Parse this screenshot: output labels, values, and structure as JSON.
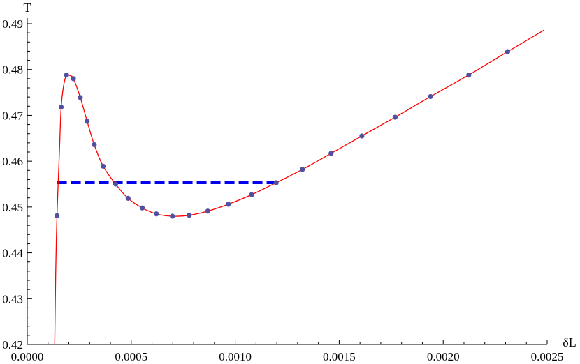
{
  "chart_data": {
    "type": "line",
    "xlabel": "δL",
    "ylabel": "T",
    "xlim": [
      0,
      0.0025
    ],
    "ylim": [
      0.42,
      0.49
    ],
    "x_ticks": [
      "0.0000",
      "0.0005",
      "0.0010",
      "0.0015",
      "0.0020",
      "0.0025"
    ],
    "x_tick_values": [
      0,
      0.0005,
      0.001,
      0.0015,
      0.002,
      0.0025
    ],
    "y_ticks": [
      "0.42",
      "0.43",
      "0.44",
      "0.45",
      "0.46",
      "0.47",
      "0.48",
      "0.49"
    ],
    "y_tick_values": [
      0.42,
      0.43,
      0.44,
      0.45,
      0.46,
      0.47,
      0.48,
      0.49
    ],
    "grid": false,
    "curve": {
      "color": "#ff0000",
      "points": [
        [
          0.000131,
          0.416
        ],
        [
          0.000137,
          0.436
        ],
        [
          0.000143,
          0.4481
        ],
        [
          0.000155,
          0.4625
        ],
        [
          0.000163,
          0.4718
        ],
        [
          0.000175,
          0.4765
        ],
        [
          0.000189,
          0.4788
        ],
        [
          0.000205,
          0.4787
        ],
        [
          0.000222,
          0.478
        ],
        [
          0.000255,
          0.4739
        ],
        [
          0.000288,
          0.4687
        ],
        [
          0.000322,
          0.4636
        ],
        [
          0.000365,
          0.4589
        ],
        [
          0.000425,
          0.455
        ],
        [
          0.000485,
          0.4519
        ],
        [
          0.000553,
          0.4498
        ],
        [
          0.000621,
          0.4485
        ],
        [
          0.000698,
          0.448
        ],
        [
          0.000779,
          0.4482
        ],
        [
          0.000868,
          0.4491
        ],
        [
          0.000967,
          0.4506
        ],
        [
          0.001079,
          0.4527
        ],
        [
          0.001197,
          0.4553
        ],
        [
          0.001323,
          0.4582
        ],
        [
          0.001461,
          0.4617
        ],
        [
          0.001609,
          0.4655
        ],
        [
          0.001769,
          0.4696
        ],
        [
          0.001939,
          0.4741
        ],
        [
          0.002123,
          0.4788
        ],
        [
          0.00231,
          0.4839
        ],
        [
          0.002485,
          0.4886
        ]
      ]
    },
    "markers": {
      "color": "#5050a0",
      "points": [
        [
          0.000143,
          0.4481
        ],
        [
          0.000163,
          0.4718
        ],
        [
          0.000189,
          0.4788
        ],
        [
          0.000222,
          0.478
        ],
        [
          0.000255,
          0.4739
        ],
        [
          0.000288,
          0.4687
        ],
        [
          0.000322,
          0.4636
        ],
        [
          0.000365,
          0.4589
        ],
        [
          0.000425,
          0.455
        ],
        [
          0.000485,
          0.4519
        ],
        [
          0.000553,
          0.4498
        ],
        [
          0.000621,
          0.4485
        ],
        [
          0.000698,
          0.448
        ],
        [
          0.000779,
          0.4482
        ],
        [
          0.000868,
          0.4491
        ],
        [
          0.000967,
          0.4506
        ],
        [
          0.001079,
          0.4527
        ],
        [
          0.001197,
          0.4553
        ],
        [
          0.001323,
          0.4582
        ],
        [
          0.001461,
          0.4617
        ],
        [
          0.001609,
          0.4655
        ],
        [
          0.001769,
          0.4696
        ],
        [
          0.001939,
          0.4741
        ],
        [
          0.002123,
          0.4788
        ],
        [
          0.00231,
          0.4839
        ]
      ]
    },
    "dashed_line": {
      "color": "#0000ee",
      "x": [
        0.000143,
        0.001197
      ],
      "y": 0.4553
    }
  }
}
